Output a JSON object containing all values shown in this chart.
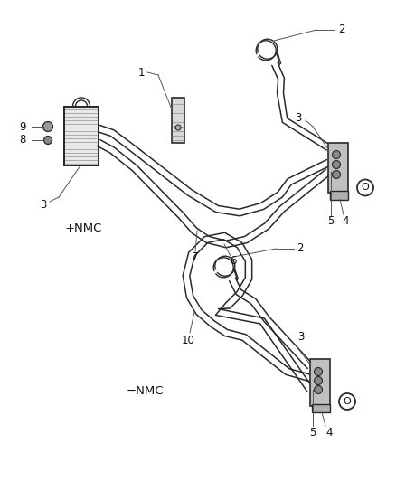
{
  "bg": "#f0f0f0",
  "lc": "#2a2a2a",
  "gray_fill": "#c8c8c8",
  "light_fill": "#e0e0e0",
  "top_label": "+NMC",
  "bot_label": "−NMC",
  "figsize": [
    4.38,
    5.33
  ],
  "dpi": 100
}
